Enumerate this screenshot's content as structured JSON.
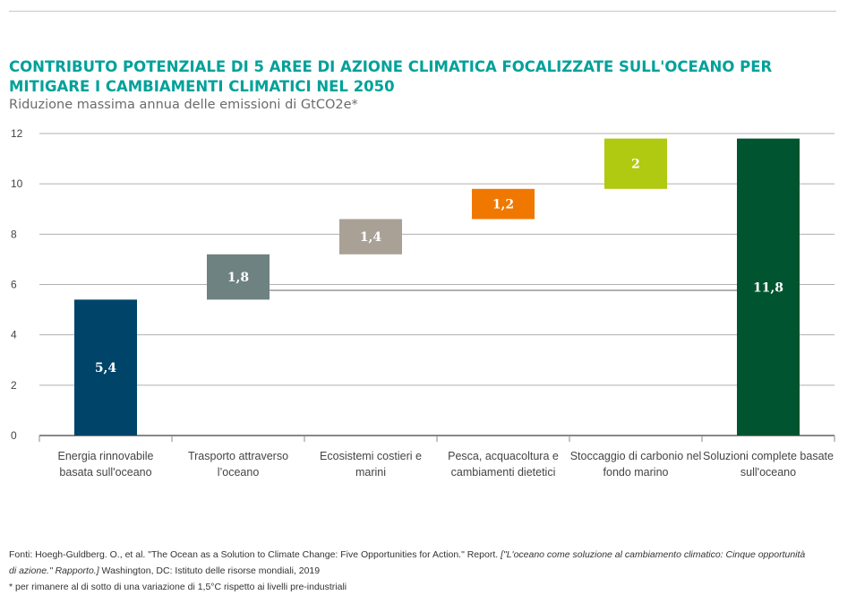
{
  "title": "CONTRIBUTO POTENZIALE DI 5 AREE DI AZIONE CLIMATICA FOCALIZZATE SULL'OCEANO PER MITIGARE I CAMBIAMENTI CLIMATICI NEL 2050",
  "subtitle": "Riduzione massima annua delle emissioni di GtCO2e*",
  "chart_data": {
    "type": "bar",
    "subtype": "waterfall",
    "categories": [
      "Energia rinnovabile basata sull'oceano",
      "Trasporto attraverso l’oceano",
      "Ecosistemi costieri e marini",
      "Pesca, acquacoltura e cambiamenti dietetici",
      "Stoccaggio di carbonio nel fondo marino",
      "Soluzioni complete basate sull'oceano"
    ],
    "values": [
      5.4,
      1.8,
      1.4,
      1.2,
      2,
      11.8
    ],
    "data_labels": [
      "5,4",
      "1,8",
      "1,4",
      "1,2",
      "2",
      "11,8"
    ],
    "total_index": 5,
    "colors": [
      "#00446A",
      "#6E8282",
      "#A9A196",
      "#F07800",
      "#B0C911",
      "#00542F"
    ],
    "ylim": [
      0,
      12
    ],
    "yticks": [
      "0",
      "2",
      "4",
      "6",
      "8",
      "10",
      "12"
    ],
    "grid": true
  },
  "source": {
    "part1": "Fonti: Hoegh-Guldberg. O., et al. \"The Ocean as a Solution to Climate Change: Five Opportunities for Action.\" Report. ",
    "part2": "[\"L'oceano come soluzione al cambiamento climatico: Cinque opportunità di azione.\" Rapporto.]",
    "part3": " Washington, DC: Istituto delle risorse mondiali, 2019",
    "note": "* per rimanere al di sotto di una variazione di 1,5°C rispetto ai livelli pre-industriali"
  }
}
